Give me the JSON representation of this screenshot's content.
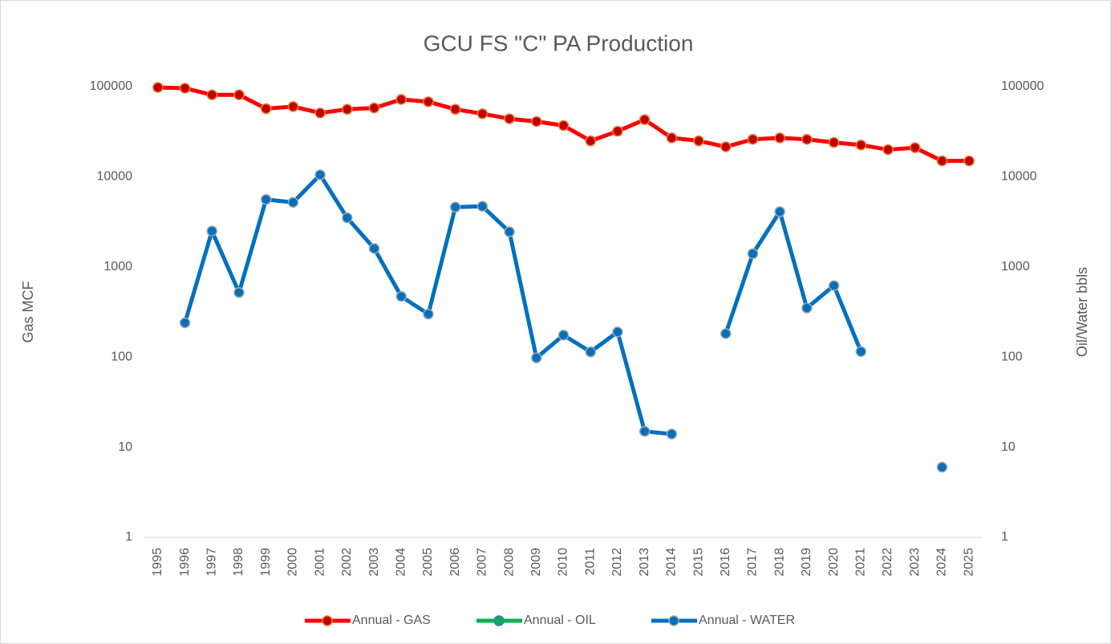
{
  "chart_data": {
    "type": "line",
    "title": "GCU FS \"C\" PA Production",
    "ylabel": "Gas MCF",
    "y2label": "Oil/Water bbls",
    "categories": [
      "1995",
      "1996",
      "1997",
      "1998",
      "1999",
      "2000",
      "2001",
      "2002",
      "2003",
      "2004",
      "2005",
      "2006",
      "2007",
      "2008",
      "2009",
      "2010",
      "2011",
      "2012",
      "2013",
      "2014",
      "2015",
      "2016",
      "2017",
      "2018",
      "2019",
      "2020",
      "2021",
      "2022",
      "2023",
      "2024",
      "2025"
    ],
    "series": [
      {
        "name": "Annual - GAS",
        "color": "#ff0000",
        "marker_color": "#c00000",
        "marker_edge": "#ed7d31",
        "axis": "y",
        "values": [
          98000,
          96000,
          81000,
          81000,
          57000,
          60000,
          51000,
          56000,
          58000,
          72000,
          68000,
          56000,
          50000,
          44000,
          41000,
          37000,
          25000,
          32000,
          43000,
          27000,
          25000,
          21500,
          26000,
          27000,
          26000,
          24000,
          22500,
          20000,
          21000,
          15000,
          15000
        ]
      },
      {
        "name": "Annual - OIL",
        "color": "#00b050",
        "marker_color": "#00b050",
        "marker_edge": "#4472c4",
        "axis": "y2",
        "values": [
          null,
          null,
          null,
          null,
          null,
          null,
          null,
          null,
          null,
          null,
          null,
          null,
          null,
          null,
          null,
          null,
          null,
          null,
          null,
          null,
          null,
          null,
          null,
          null,
          null,
          null,
          null,
          null,
          null,
          null,
          null
        ]
      },
      {
        "name": "Annual - WATER",
        "color": "#0070c0",
        "marker_color": "#0070c0",
        "marker_edge": "#a5a5a5",
        "axis": "y2",
        "values": [
          null,
          240,
          2500,
          520,
          5600,
          5200,
          10500,
          3500,
          1600,
          470,
          300,
          4600,
          4700,
          2450,
          98,
          175,
          114,
          190,
          15,
          14,
          null,
          182,
          1400,
          4100,
          350,
          620,
          115,
          null,
          null,
          6,
          null
        ]
      }
    ],
    "log_scale": true,
    "ylim": [
      1,
      100000
    ],
    "yticks": [
      1,
      10,
      100,
      1000,
      10000,
      100000
    ],
    "y2lim": [
      1,
      100000
    ],
    "y2ticks": [
      1,
      10,
      100,
      1000,
      10000,
      100000
    ],
    "legend": "bottom"
  }
}
